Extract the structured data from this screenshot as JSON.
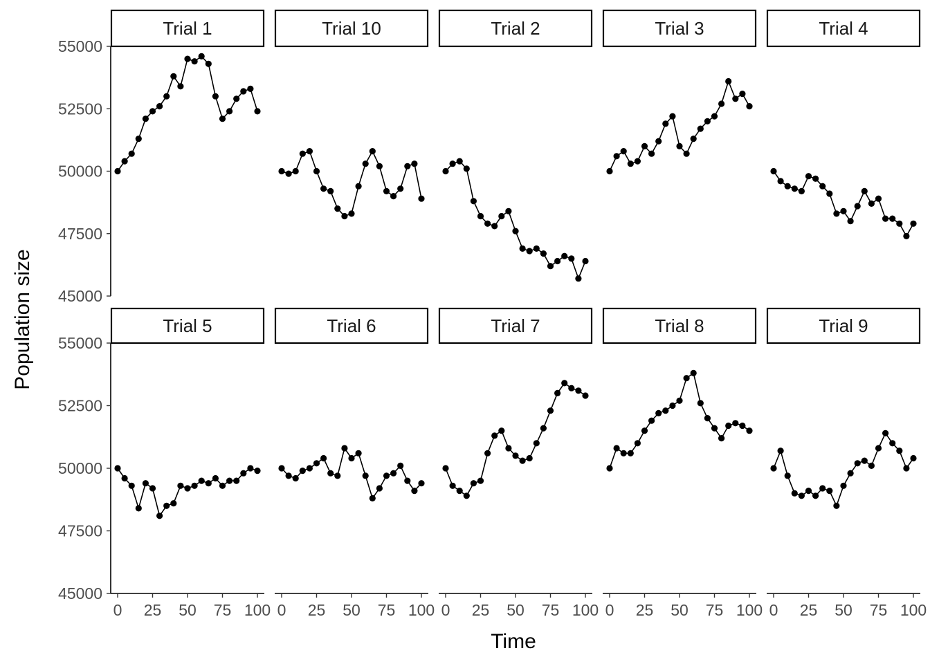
{
  "chart_data": {
    "type": "line",
    "xlabel": "Time",
    "ylabel": "Population size",
    "xlim": [
      0,
      100
    ],
    "ylim": [
      45000,
      55000
    ],
    "x_ticks": [
      0,
      25,
      50,
      75,
      100
    ],
    "y_ticks": [
      45000,
      47500,
      50000,
      52500,
      55000
    ],
    "facets": [
      {
        "label": "Trial 1",
        "x": [
          0,
          5,
          10,
          15,
          20,
          25,
          30,
          35,
          40,
          45,
          50,
          55,
          60,
          65,
          70,
          75,
          80,
          85,
          90,
          95,
          100
        ],
        "y": [
          50000,
          50400,
          50700,
          51300,
          52100,
          52400,
          52600,
          53000,
          53800,
          53400,
          54500,
          54400,
          54600,
          54300,
          53000,
          52100,
          52400,
          52900,
          53200,
          53300,
          52400
        ]
      },
      {
        "label": "Trial 10",
        "x": [
          0,
          5,
          10,
          15,
          20,
          25,
          30,
          35,
          40,
          45,
          50,
          55,
          60,
          65,
          70,
          75,
          80,
          85,
          90,
          95,
          100
        ],
        "y": [
          50000,
          49900,
          50000,
          50700,
          50800,
          50000,
          49300,
          49200,
          48500,
          48200,
          48300,
          49400,
          50300,
          50800,
          50200,
          49200,
          49000,
          49300,
          50200,
          50300,
          48900
        ]
      },
      {
        "label": "Trial 2",
        "x": [
          0,
          5,
          10,
          15,
          20,
          25,
          30,
          35,
          40,
          45,
          50,
          55,
          60,
          65,
          70,
          75,
          80,
          85,
          90,
          95,
          100
        ],
        "y": [
          50000,
          50300,
          50400,
          50100,
          48800,
          48200,
          47900,
          47800,
          48200,
          48400,
          47600,
          46900,
          46800,
          46900,
          46700,
          46200,
          46400,
          46600,
          46500,
          45700,
          46400
        ]
      },
      {
        "label": "Trial 3",
        "x": [
          0,
          5,
          10,
          15,
          20,
          25,
          30,
          35,
          40,
          45,
          50,
          55,
          60,
          65,
          70,
          75,
          80,
          85,
          90,
          95,
          100
        ],
        "y": [
          50000,
          50600,
          50800,
          50300,
          50400,
          51000,
          50700,
          51200,
          51900,
          52200,
          51000,
          50700,
          51300,
          51700,
          52000,
          52200,
          52700,
          53600,
          52900,
          53100,
          52600
        ]
      },
      {
        "label": "Trial 4",
        "x": [
          0,
          5,
          10,
          15,
          20,
          25,
          30,
          35,
          40,
          45,
          50,
          55,
          60,
          65,
          70,
          75,
          80,
          85,
          90,
          95,
          100
        ],
        "y": [
          50000,
          49600,
          49400,
          49300,
          49200,
          49800,
          49700,
          49400,
          49100,
          48300,
          48400,
          48000,
          48600,
          49200,
          48700,
          48900,
          48100,
          48100,
          47900,
          47400,
          47900
        ]
      },
      {
        "label": "Trial 5",
        "x": [
          0,
          5,
          10,
          15,
          20,
          25,
          30,
          35,
          40,
          45,
          50,
          55,
          60,
          65,
          70,
          75,
          80,
          85,
          90,
          95,
          100
        ],
        "y": [
          50000,
          49600,
          49300,
          48400,
          49400,
          49200,
          48100,
          48500,
          48600,
          49300,
          49200,
          49300,
          49500,
          49400,
          49600,
          49300,
          49500,
          49500,
          49800,
          50000,
          49900
        ]
      },
      {
        "label": "Trial 6",
        "x": [
          0,
          5,
          10,
          15,
          20,
          25,
          30,
          35,
          40,
          45,
          50,
          55,
          60,
          65,
          70,
          75,
          80,
          85,
          90,
          95,
          100
        ],
        "y": [
          50000,
          49700,
          49600,
          49900,
          50000,
          50200,
          50400,
          49800,
          49700,
          50800,
          50400,
          50600,
          49700,
          48800,
          49200,
          49700,
          49800,
          50100,
          49500,
          49100,
          49400
        ]
      },
      {
        "label": "Trial 7",
        "x": [
          0,
          5,
          10,
          15,
          20,
          25,
          30,
          35,
          40,
          45,
          50,
          55,
          60,
          65,
          70,
          75,
          80,
          85,
          90,
          95,
          100
        ],
        "y": [
          50000,
          49300,
          49100,
          48900,
          49400,
          49500,
          50600,
          51300,
          51500,
          50800,
          50500,
          50300,
          50400,
          51000,
          51600,
          52300,
          53000,
          53400,
          53200,
          53100,
          52900
        ]
      },
      {
        "label": "Trial 8",
        "x": [
          0,
          5,
          10,
          15,
          20,
          25,
          30,
          35,
          40,
          45,
          50,
          55,
          60,
          65,
          70,
          75,
          80,
          85,
          90,
          95,
          100
        ],
        "y": [
          50000,
          50800,
          50600,
          50600,
          51000,
          51500,
          51900,
          52200,
          52300,
          52500,
          52700,
          53600,
          53800,
          52600,
          52000,
          51600,
          51200,
          51700,
          51800,
          51700,
          51500
        ]
      },
      {
        "label": "Trial 9",
        "x": [
          0,
          5,
          10,
          15,
          20,
          25,
          30,
          35,
          40,
          45,
          50,
          55,
          60,
          65,
          70,
          75,
          80,
          85,
          90,
          95,
          100
        ],
        "y": [
          50000,
          50700,
          49700,
          49000,
          48900,
          49100,
          48900,
          49200,
          49100,
          48500,
          49300,
          49800,
          50200,
          50300,
          50100,
          50800,
          51400,
          51000,
          50700,
          50000,
          50400
        ]
      }
    ]
  }
}
